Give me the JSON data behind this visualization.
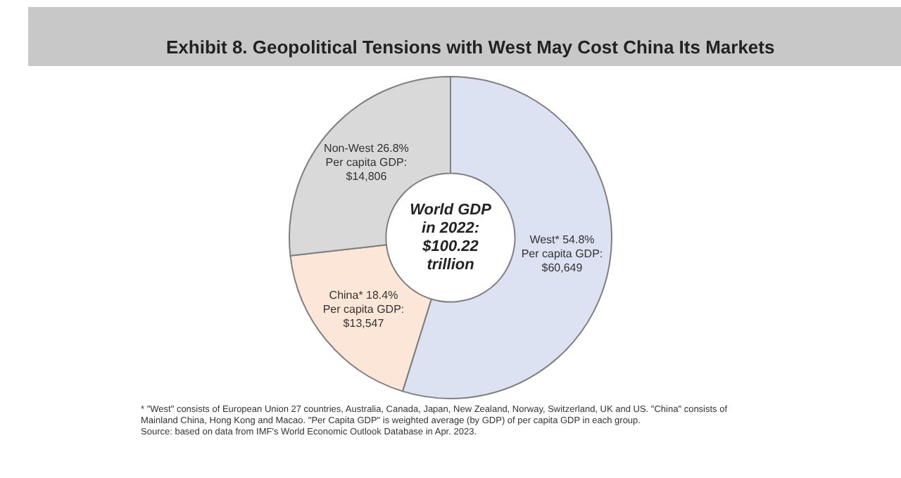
{
  "chart_data": {
    "type": "donut",
    "title": "Exhibit 8. Geopolitical Tensions with West May Cost China Its Markets",
    "categories": [
      "West*",
      "China*",
      "Non-West"
    ],
    "values": [
      54.8,
      18.4,
      26.8
    ],
    "value_labels": [
      "54.8%",
      "18.4%",
      "26.8%"
    ],
    "colors": [
      "#dde2f3",
      "#fbe6d8",
      "#d9d9d9"
    ],
    "legend": false,
    "annotations": [
      {
        "text": "Per capita GDP: $60,649",
        "x": "West*"
      },
      {
        "text": "Per capita GDP: $13,547",
        "x": "China*"
      },
      {
        "text": "Per capita GDP: $14,806",
        "x": "Non-West"
      },
      "World GDP in 2022: $100.22 trillion",
      "* \"West\" consists of European Union 27 countries, Australia, Canada, Japan, New Zealand, Norway, Switzerland, UK and US. \"China\" consists of Mainland China, Hong Kong and Macao. \"Per Capita GDP\" is weighted average (by GDP) of per capita GDP in each group.",
      "Source: based on data from IMF's World Economic Outlook Database in Apr. 2023."
    ]
  }
}
